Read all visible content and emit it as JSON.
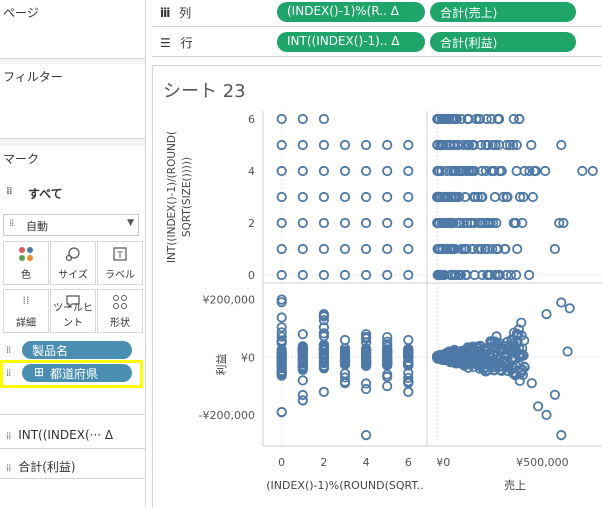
{
  "pages": {
    "title": "ページ"
  },
  "filters": {
    "title": "フィルター"
  },
  "marks": {
    "title": "マーク",
    "all_label": "すべて",
    "mark_type": "自動",
    "buttons": [
      {
        "label": "色",
        "icon": "color-icon"
      },
      {
        "label": "サイズ",
        "icon": "size-icon"
      },
      {
        "label": "ラベル",
        "icon": "label-icon"
      },
      {
        "label": "詳細",
        "icon": "detail-icon"
      },
      {
        "label": "ツールヒント",
        "icon": "tooltip-icon"
      },
      {
        "label": "形状",
        "icon": "shape-icon"
      }
    ],
    "fields": [
      "製品名",
      "都道府県"
    ],
    "measures": [
      "INT((INDEX(··· Δ",
      "合計(利益)"
    ]
  },
  "columns_shelf": {
    "label": "列",
    "pills": [
      "(INDEX()-1)%(R.. Δ",
      "合計(売上)"
    ]
  },
  "rows_shelf": {
    "label": "行",
    "pills": [
      "INT((INDEX()-1).. Δ",
      "合計(利益)"
    ]
  },
  "sheet": {
    "title": "シート 23"
  },
  "colors": {
    "accent_green": "#1fa56a",
    "dimension_blue": "#4a8fb2",
    "mark": "#4e79a7",
    "highlight": "#ffff00"
  },
  "chart_data": {
    "type": "scatter",
    "layout": "2x2 scatter matrix",
    "row_axes": [
      {
        "label": "INT((INDEX()-1)/(ROUND(SQRT(SIZE()))))",
        "ticks": [
          "6",
          "4",
          "2",
          "0"
        ],
        "ylim": [
          0,
          6
        ]
      },
      {
        "label": "利益",
        "ticks": [
          "¥200,000",
          "¥0",
          "-¥200,000"
        ],
        "ylim": [
          -280000,
          230000
        ]
      }
    ],
    "col_axes": [
      {
        "label": "(INDEX()-1)%(ROUND(SQRT..",
        "ticks": [
          "0",
          "2",
          "4",
          "6"
        ],
        "xlim": [
          -0.6,
          6.6
        ]
      },
      {
        "label": "売上",
        "ticks": [
          "¥0",
          "¥500,000"
        ],
        "xlim": [
          -20000,
          760000
        ]
      }
    ],
    "grid": false,
    "legend": "none"
  }
}
